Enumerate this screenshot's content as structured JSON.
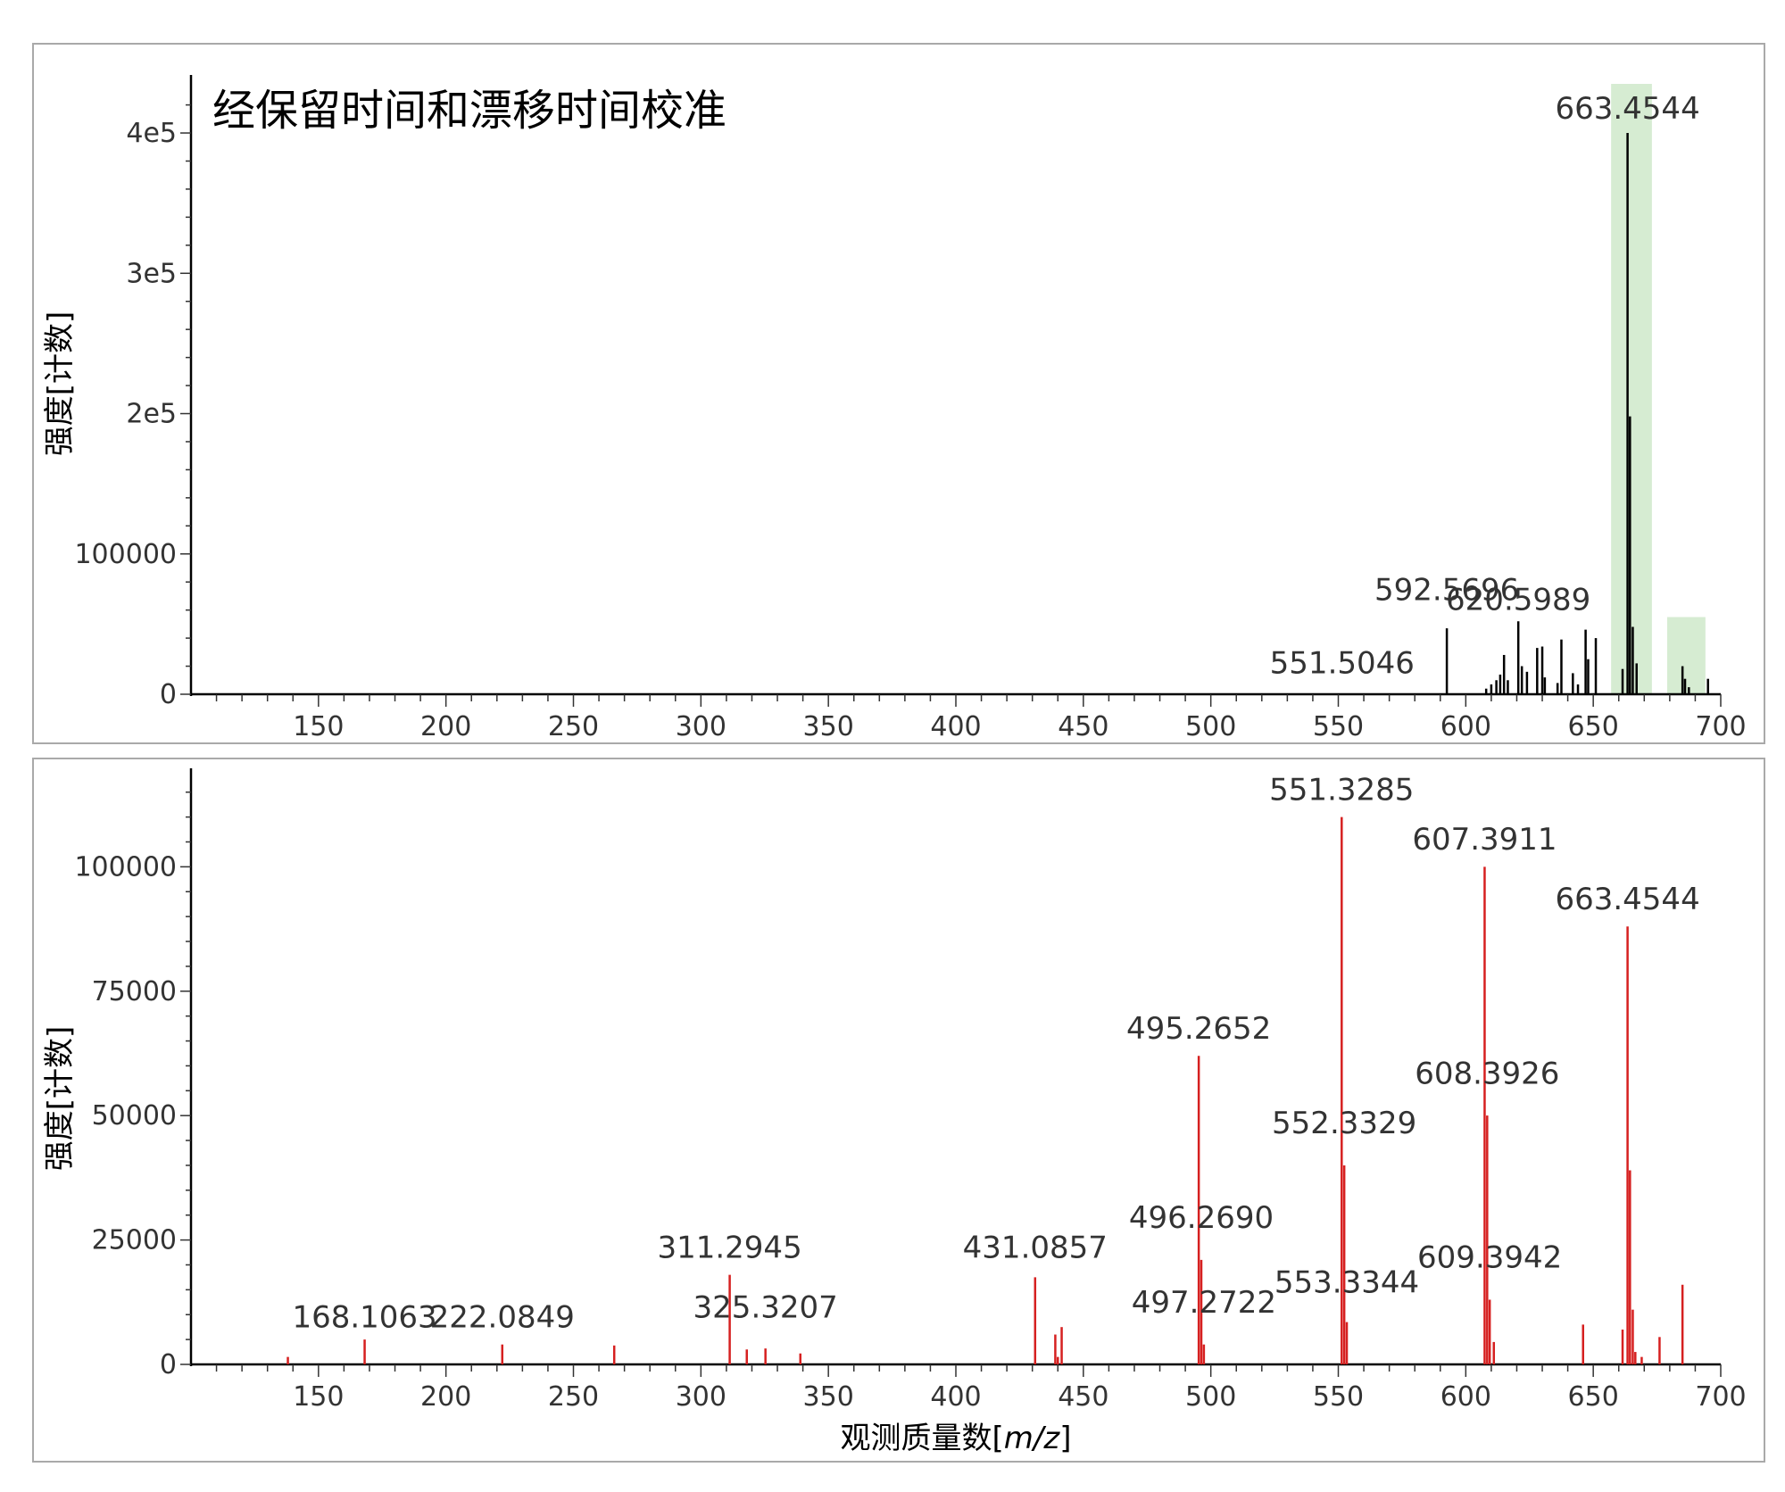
{
  "chart_data": [
    {
      "type": "bar",
      "title": "经保留时间和漂移时间校准",
      "xlabel": "",
      "ylabel": "强度[计数]",
      "xlim": [
        100,
        700
      ],
      "ylim": [
        0,
        435000
      ],
      "x_ticks": [
        150,
        200,
        250,
        300,
        350,
        400,
        450,
        500,
        550,
        600,
        650,
        700
      ],
      "x_tick_labels": [
        "150",
        "200",
        "250",
        "300",
        "350",
        "400",
        "450",
        "500",
        "550",
        "600",
        "650",
        "700"
      ],
      "y_ticks": [
        0,
        100000,
        200000,
        300000,
        400000
      ],
      "y_tick_labels": [
        "0",
        "100000",
        "2e5",
        "3e5",
        "4e5"
      ],
      "color": "#000000",
      "grid": false,
      "highlights": [
        {
          "x_start": 657,
          "x_end": 673,
          "y_top": 435000,
          "color": "#d6ecd2"
        },
        {
          "x_start": 679,
          "x_end": 694,
          "y_top": 55000,
          "color": "#d6ecd2"
        }
      ],
      "peaks": [
        {
          "x": 592.5696,
          "y": 47000
        },
        {
          "x": 608.0,
          "y": 4000
        },
        {
          "x": 610.0,
          "y": 7000
        },
        {
          "x": 612.0,
          "y": 10000
        },
        {
          "x": 613.5,
          "y": 14000
        },
        {
          "x": 615.0,
          "y": 28000
        },
        {
          "x": 616.5,
          "y": 10000
        },
        {
          "x": 620.5989,
          "y": 52000
        },
        {
          "x": 622.0,
          "y": 20000
        },
        {
          "x": 624.0,
          "y": 16000
        },
        {
          "x": 628.0,
          "y": 33000
        },
        {
          "x": 630.0,
          "y": 34000
        },
        {
          "x": 631.0,
          "y": 12000
        },
        {
          "x": 636.0,
          "y": 8000
        },
        {
          "x": 637.5,
          "y": 39000
        },
        {
          "x": 642.0,
          "y": 15000
        },
        {
          "x": 644.0,
          "y": 7000
        },
        {
          "x": 647.0,
          "y": 46000
        },
        {
          "x": 648.0,
          "y": 25000
        },
        {
          "x": 651.0,
          "y": 40000
        },
        {
          "x": 661.5,
          "y": 18000
        },
        {
          "x": 663.4544,
          "y": 400000
        },
        {
          "x": 664.4,
          "y": 198000
        },
        {
          "x": 665.5,
          "y": 48000
        },
        {
          "x": 667.0,
          "y": 22000
        },
        {
          "x": 685.0,
          "y": 20000
        },
        {
          "x": 686.0,
          "y": 11000
        },
        {
          "x": 687.5,
          "y": 5000
        },
        {
          "x": 695.0,
          "y": 11000
        }
      ],
      "labels": [
        {
          "x": 551.5046,
          "text": "551.5046",
          "y": 10000
        },
        {
          "x": 592.5696,
          "text": "592.5696",
          "y": 62000
        },
        {
          "x": 620.5989,
          "text": "620.5989",
          "y": 55000
        },
        {
          "x": 663.4544,
          "text": "663.4544",
          "y": 405000
        }
      ]
    },
    {
      "type": "bar",
      "title": "",
      "xlabel": "观测质量数[m/z]",
      "ylabel": "强度[计数]",
      "xlim": [
        100,
        700
      ],
      "ylim": [
        0,
        118000
      ],
      "x_ticks": [
        150,
        200,
        250,
        300,
        350,
        400,
        450,
        500,
        550,
        600,
        650,
        700
      ],
      "x_tick_labels": [
        "150",
        "200",
        "250",
        "300",
        "350",
        "400",
        "450",
        "500",
        "550",
        "600",
        "650",
        "700"
      ],
      "y_ticks": [
        0,
        25000,
        50000,
        75000,
        100000
      ],
      "y_tick_labels": [
        "0",
        "25000",
        "50000",
        "75000",
        "100000"
      ],
      "color": "#d62020",
      "grid": false,
      "peaks": [
        {
          "x": 138.0,
          "y": 1500
        },
        {
          "x": 168.1063,
          "y": 5000
        },
        {
          "x": 222.0849,
          "y": 4000
        },
        {
          "x": 266.0,
          "y": 3800
        },
        {
          "x": 311.2945,
          "y": 18000
        },
        {
          "x": 318.0,
          "y": 3000
        },
        {
          "x": 325.3207,
          "y": 3200
        },
        {
          "x": 339.0,
          "y": 2200
        },
        {
          "x": 431.0857,
          "y": 17500
        },
        {
          "x": 439.0,
          "y": 6000
        },
        {
          "x": 440.0,
          "y": 1500
        },
        {
          "x": 441.5,
          "y": 7500
        },
        {
          "x": 495.2652,
          "y": 62000
        },
        {
          "x": 496.269,
          "y": 21000
        },
        {
          "x": 497.2722,
          "y": 4000
        },
        {
          "x": 551.3285,
          "y": 110000
        },
        {
          "x": 552.3329,
          "y": 40000
        },
        {
          "x": 553.3344,
          "y": 8500
        },
        {
          "x": 607.3911,
          "y": 100000
        },
        {
          "x": 608.3926,
          "y": 50000
        },
        {
          "x": 609.3942,
          "y": 13000
        },
        {
          "x": 611.0,
          "y": 4500
        },
        {
          "x": 646.0,
          "y": 8000
        },
        {
          "x": 661.5,
          "y": 7000
        },
        {
          "x": 663.4544,
          "y": 88000
        },
        {
          "x": 664.4,
          "y": 39000
        },
        {
          "x": 665.5,
          "y": 11000
        },
        {
          "x": 666.5,
          "y": 2500
        },
        {
          "x": 669.0,
          "y": 1500
        },
        {
          "x": 676.0,
          "y": 5500
        },
        {
          "x": 685.0,
          "y": 16000
        }
      ],
      "labels": [
        {
          "x": 168.1063,
          "text": "168.1063",
          "y": 6000
        },
        {
          "x": 222.0849,
          "text": "222.0849",
          "y": 6000
        },
        {
          "x": 311.2945,
          "text": "311.2945",
          "y": 20000
        },
        {
          "x": 325.3207,
          "text": "325.3207",
          "y": 8000
        },
        {
          "x": 431.0857,
          "text": "431.0857",
          "y": 20000
        },
        {
          "x": 495.2652,
          "text": "495.2652",
          "y": 64000
        },
        {
          "x": 496.269,
          "text": "496.2690",
          "y": 26000
        },
        {
          "x": 497.2722,
          "text": "497.2722",
          "y": 9000
        },
        {
          "x": 551.3285,
          "text": "551.3285",
          "y": 112000
        },
        {
          "x": 552.3329,
          "text": "552.3329",
          "y": 45000
        },
        {
          "x": 553.3344,
          "text": "553.3344",
          "y": 13000
        },
        {
          "x": 607.3911,
          "text": "607.3911",
          "y": 102000
        },
        {
          "x": 608.3926,
          "text": "608.3926",
          "y": 55000
        },
        {
          "x": 609.3942,
          "text": "609.3942",
          "y": 18000
        },
        {
          "x": 663.4544,
          "text": "663.4544",
          "y": 90000
        }
      ]
    }
  ]
}
